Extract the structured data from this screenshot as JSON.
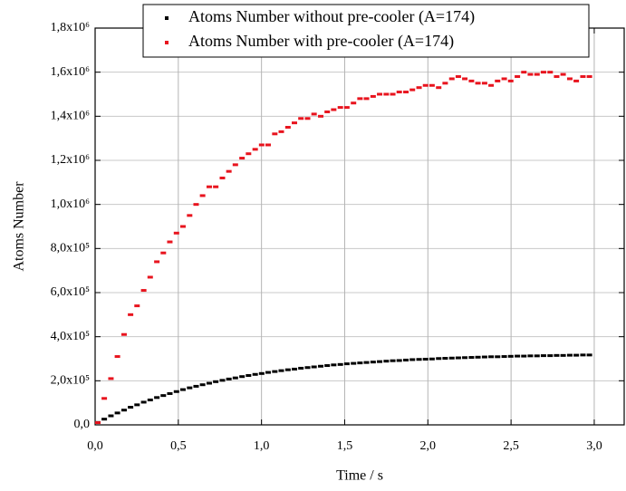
{
  "chart_data": {
    "type": "scatter",
    "x_label": "Time / s",
    "y_label": "Atoms Number",
    "legend": "upper-right",
    "grid": true,
    "xlim": [
      0,
      3.18
    ],
    "ylim": [
      0,
      1800000
    ],
    "xticks": [
      {
        "value": 0,
        "label": "0,0"
      },
      {
        "value": 0.5,
        "label": "0,5"
      },
      {
        "value": 1,
        "label": "1,0"
      },
      {
        "value": 1.5,
        "label": "1,5"
      },
      {
        "value": 2,
        "label": "2,0"
      },
      {
        "value": 2.5,
        "label": "2,5"
      },
      {
        "value": 3,
        "label": "3,0"
      }
    ],
    "yticks": [
      {
        "value": 0,
        "label": "0,0"
      },
      {
        "value": 200000,
        "label": "2,0x10⁵"
      },
      {
        "value": 400000,
        "label": "4,0x10⁵"
      },
      {
        "value": 600000,
        "label": "6,0x10⁵"
      },
      {
        "value": 800000,
        "label": "8,0x10⁵"
      },
      {
        "value": 1000000,
        "label": "1,0x10⁶"
      },
      {
        "value": 1200000,
        "label": "1,2x10⁶"
      },
      {
        "value": 1400000,
        "label": "1,4x10⁶"
      },
      {
        "value": 1600000,
        "label": "1,6x10⁶"
      },
      {
        "value": 1800000,
        "label": "1,8x10⁶"
      }
    ],
    "x": [
      0.016,
      0.055,
      0.095,
      0.134,
      0.174,
      0.213,
      0.252,
      0.292,
      0.331,
      0.371,
      0.41,
      0.449,
      0.489,
      0.528,
      0.568,
      0.607,
      0.646,
      0.686,
      0.725,
      0.765,
      0.804,
      0.843,
      0.883,
      0.922,
      0.962,
      1.001,
      1.04,
      1.08,
      1.119,
      1.159,
      1.198,
      1.237,
      1.277,
      1.316,
      1.356,
      1.395,
      1.434,
      1.474,
      1.513,
      1.553,
      1.592,
      1.631,
      1.671,
      1.71,
      1.75,
      1.789,
      1.828,
      1.868,
      1.907,
      1.947,
      1.986,
      2.025,
      2.065,
      2.104,
      2.144,
      2.183,
      2.222,
      2.262,
      2.301,
      2.341,
      2.38,
      2.419,
      2.459,
      2.498,
      2.538,
      2.577,
      2.616,
      2.656,
      2.695,
      2.735,
      2.774,
      2.813,
      2.853,
      2.892,
      2.932,
      2.971
    ],
    "series": [
      {
        "name": "Atoms Number without pre-cooler (A=174)",
        "color": "#000000",
        "values": [
          11000,
          26000,
          41000,
          54000,
          67000,
          80000,
          91000,
          103000,
          113000,
          124000,
          133000,
          142000,
          151000,
          160000,
          168000,
          175000,
          182000,
          189000,
          196000,
          202000,
          208000,
          213000,
          219000,
          224000,
          229000,
          233000,
          238000,
          242000,
          246000,
          250000,
          253000,
          257000,
          260000,
          263000,
          266000,
          269000,
          272000,
          274000,
          277000,
          279000,
          281000,
          283000,
          285000,
          287000,
          289000,
          291000,
          292000,
          294000,
          296000,
          297000,
          298000,
          299000,
          301000,
          302000,
          303000,
          304000,
          305000,
          306000,
          307000,
          308000,
          309000,
          309000,
          310000,
          311000,
          312000,
          312000,
          313000,
          313000,
          314000,
          314000,
          315000,
          315000,
          316000,
          316000,
          317000,
          317000
        ]
      },
      {
        "name": "Atoms Number with pre-cooler (A=174)",
        "color": "#e8141e",
        "values": [
          10000,
          120000,
          210000,
          310000,
          410000,
          500000,
          540000,
          610000,
          670000,
          740000,
          780000,
          830000,
          870000,
          900000,
          950000,
          1000000,
          1040000,
          1080000,
          1080000,
          1120000,
          1150000,
          1180000,
          1210000,
          1230000,
          1250000,
          1270000,
          1270000,
          1320000,
          1330000,
          1350000,
          1370000,
          1390000,
          1390000,
          1410000,
          1400000,
          1420000,
          1430000,
          1440000,
          1440000,
          1460000,
          1480000,
          1480000,
          1490000,
          1500000,
          1500000,
          1500000,
          1510000,
          1510000,
          1520000,
          1530000,
          1540000,
          1540000,
          1530000,
          1550000,
          1570000,
          1580000,
          1570000,
          1560000,
          1550000,
          1550000,
          1540000,
          1560000,
          1570000,
          1560000,
          1580000,
          1600000,
          1590000,
          1590000,
          1600000,
          1600000,
          1580000,
          1590000,
          1570000,
          1560000,
          1580000,
          1580000
        ]
      }
    ]
  }
}
